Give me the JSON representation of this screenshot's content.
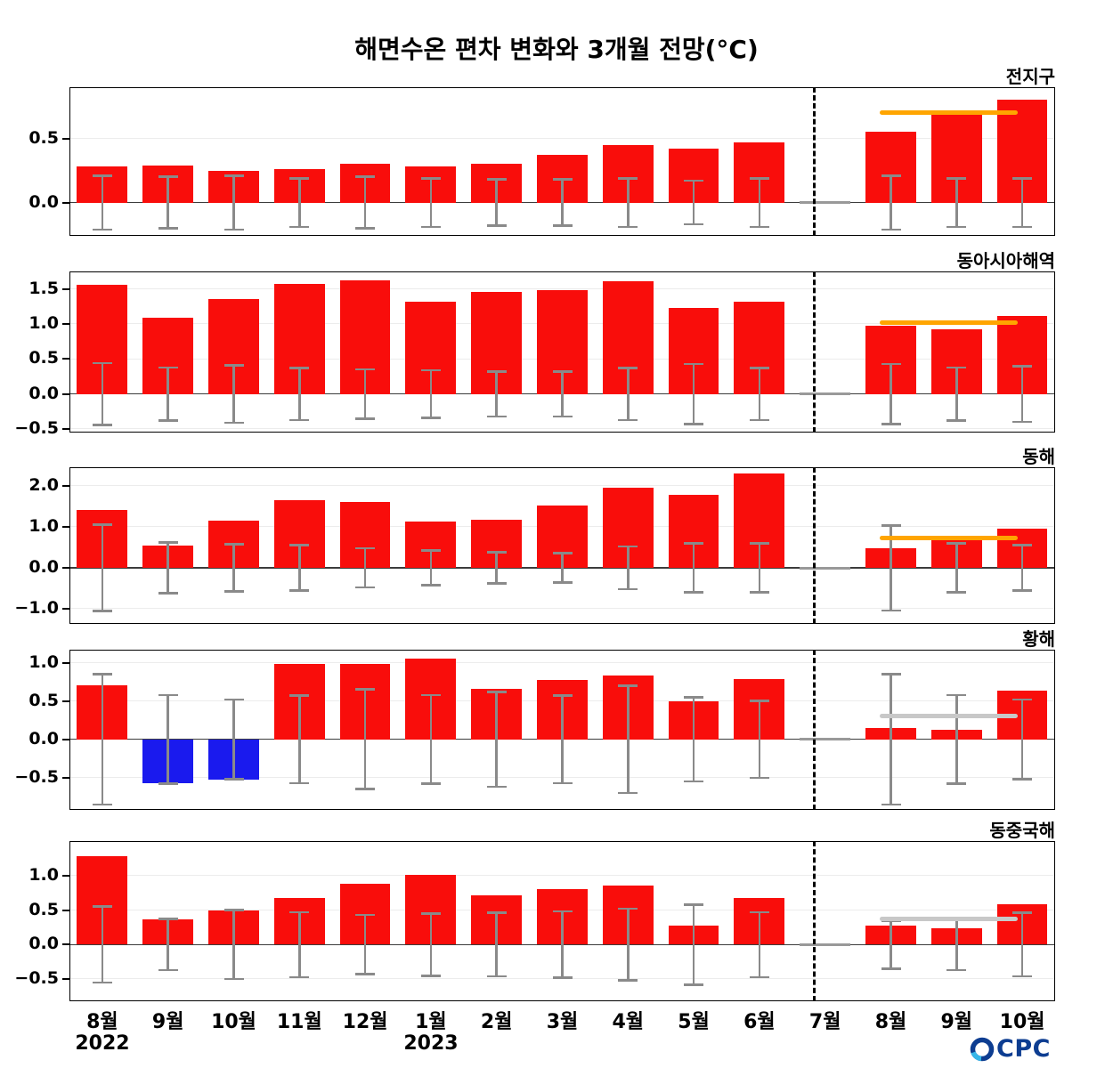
{
  "title": "해면수온 편차 변화와 3개월 전망(°C)",
  "colors": {
    "positive_bar": "#f90d0b",
    "negative_bar": "#1a1aee",
    "error_bar": "#8a8a8a",
    "orange": "#ffa500",
    "gray": "#c8c8c8",
    "divider": "#000000"
  },
  "footer": {
    "x_labels": [
      "8월",
      "9월",
      "10월",
      "11월",
      "12월",
      "1월",
      "2월",
      "3월",
      "4월",
      "5월",
      "6월",
      "7월",
      "8월",
      "9월",
      "10월"
    ],
    "year_left": "2022",
    "year_right": "2023",
    "logo": {
      "name": "OCPC",
      "text": "CPC",
      "color_dark": "#0d3d91",
      "color_light": "#35b6e9"
    }
  },
  "chart_data": [
    {
      "type": "bar",
      "title": "전지구",
      "categories": [
        "8월",
        "9월",
        "10월",
        "11월",
        "12월",
        "1월",
        "2월",
        "3월",
        "4월",
        "5월",
        "6월",
        "7월",
        "8월",
        "9월",
        "10월"
      ],
      "values": [
        0.28,
        0.29,
        0.25,
        0.26,
        0.3,
        0.28,
        0.3,
        0.37,
        0.45,
        0.42,
        0.47,
        null,
        0.55,
        0.7,
        0.8
      ],
      "errors": [
        0.21,
        0.2,
        0.21,
        0.19,
        0.2,
        0.19,
        0.18,
        0.18,
        0.19,
        0.17,
        0.19,
        null,
        0.21,
        0.19,
        0.19
      ],
      "yticks": [
        0.0,
        0.5
      ],
      "ylim": [
        -0.26,
        0.9
      ],
      "forecast_start_index": 12,
      "forecast": {
        "line_y": 0.7,
        "line_color": "orange"
      }
    },
    {
      "type": "bar",
      "title": "동아시아해역",
      "categories": [
        "8월",
        "9월",
        "10월",
        "11월",
        "12월",
        "1월",
        "2월",
        "3월",
        "4월",
        "5월",
        "6월",
        "7월",
        "8월",
        "9월",
        "10월"
      ],
      "values": [
        1.56,
        1.09,
        1.35,
        1.57,
        1.62,
        1.32,
        1.46,
        1.48,
        1.61,
        1.23,
        1.32,
        null,
        0.97,
        0.93,
        1.12
      ],
      "errors": [
        0.44,
        0.38,
        0.41,
        0.37,
        0.35,
        0.34,
        0.32,
        0.32,
        0.37,
        0.43,
        0.37,
        null,
        0.43,
        0.38,
        0.4
      ],
      "yticks": [
        -0.5,
        0.0,
        0.5,
        1.0,
        1.5
      ],
      "ylim": [
        -0.55,
        1.75
      ],
      "forecast_start_index": 12,
      "forecast": {
        "line_y": 1.02,
        "line_color": "orange"
      }
    },
    {
      "type": "bar",
      "title": "동해",
      "categories": [
        "8월",
        "9월",
        "10월",
        "11월",
        "12월",
        "1월",
        "2월",
        "3월",
        "4월",
        "5월",
        "6월",
        "7월",
        "8월",
        "9월",
        "10월"
      ],
      "values": [
        1.41,
        0.55,
        1.15,
        1.65,
        1.62,
        1.13,
        1.17,
        1.53,
        1.95,
        1.78,
        2.3,
        null,
        0.48,
        0.73,
        0.95
      ],
      "errors": [
        1.05,
        0.62,
        0.58,
        0.55,
        0.48,
        0.42,
        0.38,
        0.36,
        0.52,
        0.6,
        0.6,
        null,
        1.04,
        0.6,
        0.55
      ],
      "yticks": [
        -1.0,
        0.0,
        1.0,
        2.0
      ],
      "ylim": [
        -1.37,
        2.46
      ],
      "forecast_start_index": 12,
      "forecast": {
        "line_y": 0.72,
        "line_color": "orange"
      }
    },
    {
      "type": "bar",
      "title": "황해",
      "categories": [
        "8월",
        "9월",
        "10월",
        "11월",
        "12월",
        "1월",
        "2월",
        "3월",
        "4월",
        "5월",
        "6월",
        "7월",
        "8월",
        "9월",
        "10월"
      ],
      "values": [
        0.71,
        -0.57,
        -0.52,
        0.99,
        0.99,
        1.05,
        0.66,
        0.78,
        0.83,
        0.5,
        0.79,
        null,
        0.15,
        0.12,
        0.64
      ],
      "errors": [
        0.85,
        0.58,
        0.52,
        0.57,
        0.65,
        0.58,
        0.62,
        0.57,
        0.7,
        0.55,
        0.5,
        null,
        0.85,
        0.58,
        0.52
      ],
      "yticks": [
        -0.5,
        0.0,
        0.5,
        1.0
      ],
      "ylim": [
        -0.92,
        1.17
      ],
      "forecast_start_index": 12,
      "forecast": {
        "line_y": 0.31,
        "line_color": "gray"
      }
    },
    {
      "type": "bar",
      "title": "동중국해",
      "categories": [
        "8월",
        "9월",
        "10월",
        "11월",
        "12월",
        "1월",
        "2월",
        "3월",
        "4월",
        "5월",
        "6월",
        "7월",
        "8월",
        "9월",
        "10월"
      ],
      "values": [
        1.28,
        0.36,
        0.49,
        0.68,
        0.88,
        1.01,
        0.71,
        0.81,
        0.85,
        0.27,
        0.68,
        null,
        0.28,
        0.24,
        0.58
      ],
      "errors": [
        0.55,
        0.37,
        0.5,
        0.47,
        0.43,
        0.45,
        0.46,
        0.48,
        0.52,
        0.58,
        0.47,
        null,
        0.35,
        0.37,
        0.46
      ],
      "yticks": [
        -0.5,
        0.0,
        0.5,
        1.0
      ],
      "ylim": [
        -0.82,
        1.5
      ],
      "forecast_start_index": 12,
      "forecast": {
        "line_y": 0.37,
        "line_color": "gray"
      }
    }
  ]
}
